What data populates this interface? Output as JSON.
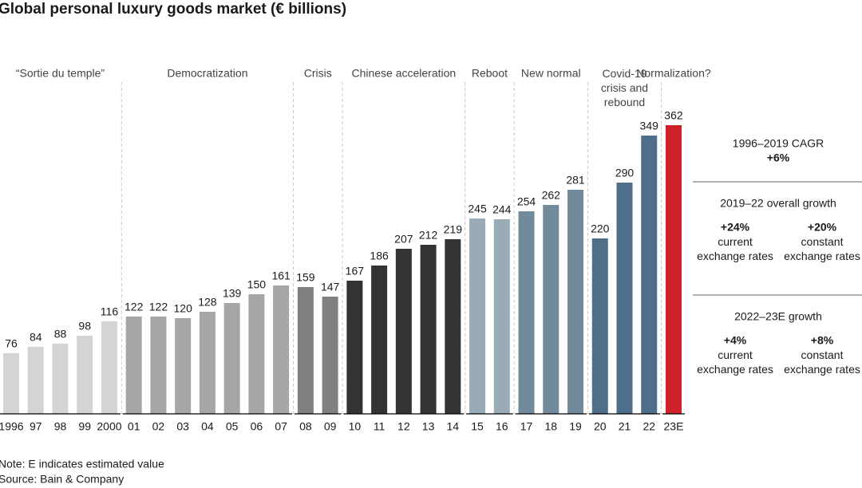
{
  "chart_data": {
    "type": "bar",
    "title": "Global personal luxury goods market (€ billions)",
    "series": [
      {
        "name": "“Sortie du temple”",
        "color": "#d4d4d4",
        "categories": [
          "1996",
          "97",
          "98",
          "99",
          "2000"
        ],
        "values": [
          76,
          84,
          88,
          98,
          116
        ]
      },
      {
        "name": "Democratization",
        "color": "#a6a6a6",
        "categories": [
          "01",
          "02",
          "03",
          "04",
          "05",
          "06",
          "07"
        ],
        "values": [
          122,
          122,
          120,
          128,
          139,
          150,
          161
        ]
      },
      {
        "name": "Crisis",
        "color": "#808080",
        "categories": [
          "08",
          "09"
        ],
        "values": [
          159,
          147
        ]
      },
      {
        "name": "Chinese acceleration",
        "color": "#333333",
        "categories": [
          "10",
          "11",
          "12",
          "13",
          "14"
        ],
        "values": [
          167,
          186,
          207,
          212,
          219
        ]
      },
      {
        "name": "Reboot",
        "color": "#9aabb8",
        "categories": [
          "15",
          "16"
        ],
        "values": [
          245,
          244
        ]
      },
      {
        "name": "New normal",
        "color": "#718a9c",
        "categories": [
          "17",
          "18",
          "19"
        ],
        "values": [
          254,
          262,
          281
        ]
      },
      {
        "name": "Covid-19\ncrisis and\nrebound",
        "color": "#4f6e8a",
        "categories": [
          "20",
          "21",
          "22"
        ],
        "values": [
          220,
          290,
          349
        ]
      },
      {
        "name": "Normalization?",
        "color": "#d0202a",
        "categories": [
          "23E"
        ],
        "values": [
          362
        ]
      }
    ],
    "notes": [
      "Note: E indicates estimated value",
      "Source: Bain & Company"
    ]
  },
  "panel": {
    "cagr": {
      "title": "1996–2019 CAGR",
      "value": "+6%"
    },
    "sections": [
      {
        "title": "2019–22 overall growth",
        "items": [
          {
            "value": "+24%",
            "label": "current\nexchange rates"
          },
          {
            "value": "+20%",
            "label": "constant\nexchange rates"
          }
        ]
      },
      {
        "title": "2022–23E growth",
        "items": [
          {
            "value": "+4%",
            "label": "current\nexchange rates"
          },
          {
            "value": "+8%",
            "label": "constant\nexchange rates"
          }
        ]
      }
    ]
  }
}
